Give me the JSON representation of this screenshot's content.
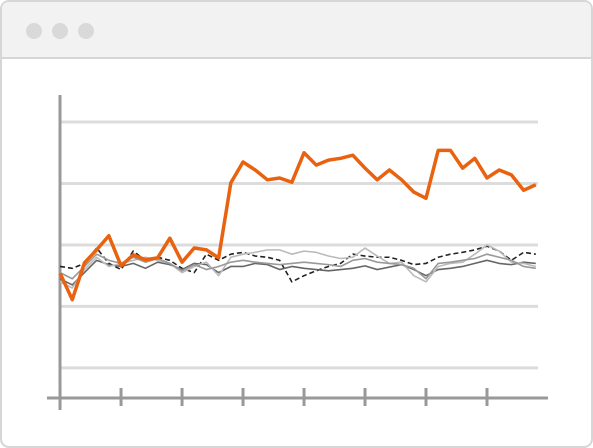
{
  "chart_data": {
    "type": "line",
    "x": [
      0,
      1,
      2,
      3,
      4,
      5,
      6,
      7,
      8,
      9,
      10,
      11,
      12,
      13,
      14,
      15,
      16,
      17,
      18,
      19,
      20,
      21,
      22,
      23,
      24,
      25,
      26,
      27,
      28,
      29,
      30,
      31,
      32,
      33,
      34,
      35,
      36,
      37,
      38,
      39
    ],
    "xlim": [
      -1.07,
      40
    ],
    "xticks": [
      0,
      5,
      10,
      15,
      20,
      25,
      30,
      35
    ],
    "ylim": [
      0.51,
      5.44
    ],
    "yticks": [
      1,
      2,
      3,
      4,
      5
    ],
    "grid": true,
    "series": [
      {
        "color": "#222222",
        "dash": true,
        "values": [
          2.65,
          2.62,
          2.7,
          2.95,
          2.7,
          2.6,
          2.9,
          2.75,
          2.8,
          2.75,
          2.62,
          2.55,
          2.85,
          2.75,
          2.85,
          2.88,
          2.82,
          2.8,
          2.75,
          2.4,
          2.5,
          2.58,
          2.65,
          2.7,
          2.85,
          2.82,
          2.8,
          2.8,
          2.75,
          2.68,
          2.7,
          2.8,
          2.85,
          2.88,
          2.92,
          2.98,
          2.9,
          2.75,
          2.88,
          2.85
        ]
      },
      {
        "color": "#666666",
        "dash": false,
        "values": [
          2.45,
          2.35,
          2.55,
          2.75,
          2.68,
          2.65,
          2.7,
          2.62,
          2.72,
          2.68,
          2.6,
          2.7,
          2.68,
          2.55,
          2.65,
          2.65,
          2.7,
          2.68,
          2.6,
          2.65,
          2.62,
          2.6,
          2.58,
          2.6,
          2.62,
          2.66,
          2.6,
          2.64,
          2.68,
          2.6,
          2.5,
          2.6,
          2.62,
          2.65,
          2.7,
          2.75,
          2.7,
          2.68,
          2.72,
          2.7
        ]
      },
      {
        "color": "#bbbbbb",
        "dash": false,
        "values": [
          2.4,
          2.3,
          2.6,
          2.8,
          2.65,
          2.7,
          2.75,
          2.8,
          2.75,
          2.7,
          2.55,
          2.65,
          2.72,
          2.5,
          2.8,
          2.85,
          2.88,
          2.92,
          2.92,
          2.85,
          2.9,
          2.88,
          2.82,
          2.78,
          2.8,
          2.95,
          2.82,
          2.7,
          2.72,
          2.5,
          2.4,
          2.65,
          2.7,
          2.72,
          2.85,
          3.0,
          2.9,
          2.72,
          2.7,
          2.65
        ]
      },
      {
        "color": "#999999",
        "dash": false,
        "values": [
          2.55,
          2.45,
          2.65,
          2.85,
          2.75,
          2.7,
          2.8,
          2.72,
          2.78,
          2.7,
          2.58,
          2.68,
          2.6,
          2.65,
          2.72,
          2.75,
          2.72,
          2.7,
          2.68,
          2.7,
          2.72,
          2.7,
          2.68,
          2.65,
          2.75,
          2.78,
          2.72,
          2.7,
          2.68,
          2.62,
          2.45,
          2.7,
          2.72,
          2.75,
          2.78,
          2.85,
          2.8,
          2.75,
          2.65,
          2.62
        ]
      },
      {
        "color": "#e8620f",
        "dash": false,
        "values": [
          2.54,
          2.11,
          2.71,
          2.92,
          3.15,
          2.66,
          2.84,
          2.76,
          2.79,
          3.11,
          2.72,
          2.95,
          2.92,
          2.79,
          4.01,
          4.35,
          4.22,
          4.06,
          4.09,
          4.02,
          4.5,
          4.3,
          4.38,
          4.41,
          4.46,
          4.25,
          4.06,
          4.22,
          4.06,
          3.86,
          3.76,
          4.54,
          4.54,
          4.25,
          4.41,
          4.09,
          4.22,
          4.14,
          3.89,
          3.98
        ]
      }
    ]
  }
}
